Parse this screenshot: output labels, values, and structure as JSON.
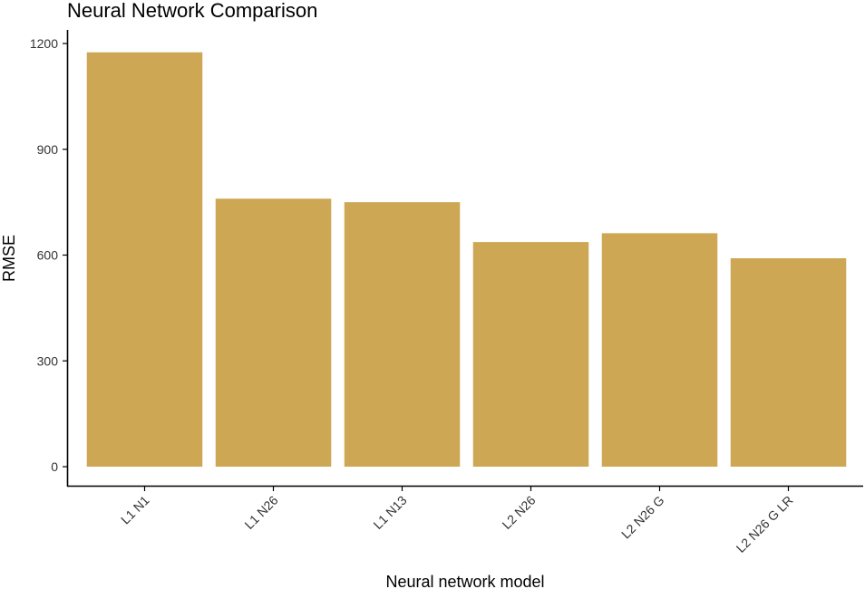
{
  "chart_data": {
    "type": "bar",
    "title": "Neural Network Comparison",
    "xlabel": "Neural network model",
    "ylabel": "RMSE",
    "categories": [
      "L1 N1",
      "L1 N26",
      "L1 N13",
      "L2 N26",
      "L2 N26 G",
      "L2 N26 G LR"
    ],
    "values": [
      1175,
      760,
      750,
      637,
      662,
      591
    ],
    "ylim": [
      0,
      1200
    ],
    "yticks": [
      "0",
      "300",
      "600",
      "900",
      "1200"
    ],
    "grid": false,
    "bar_color": "#CEA754",
    "axis_color": "#000000",
    "tick_label_color": "#333333"
  }
}
